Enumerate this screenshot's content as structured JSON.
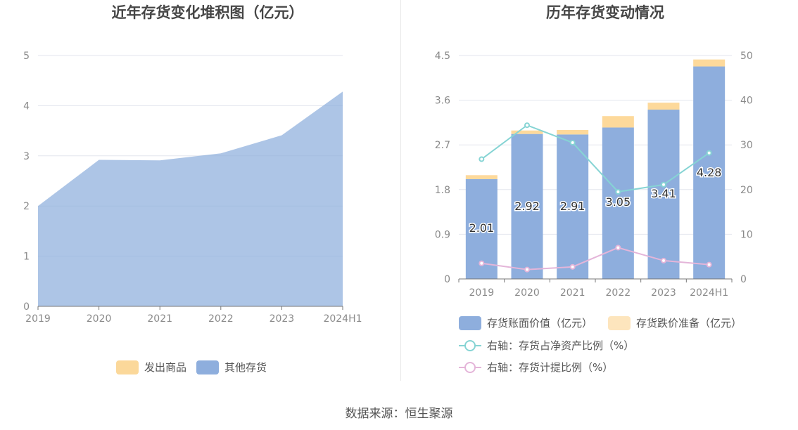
{
  "titles": {
    "left": "近年存货变化堆积图（亿元）",
    "right": "历年存货变动情况"
  },
  "source": "数据来源：恒生聚源",
  "chart_data": [
    {
      "type": "area",
      "title": "近年存货变化堆积图（亿元）",
      "categories": [
        "2019",
        "2020",
        "2021",
        "2022",
        "2023",
        "2024H1"
      ],
      "ylim": [
        0,
        5
      ],
      "yticks": [
        "0",
        "1",
        "2",
        "3",
        "4",
        "5"
      ],
      "grid": true,
      "stacked": true,
      "legend_position": "bottom",
      "series": [
        {
          "name": "发出商品",
          "values": [
            0,
            0,
            0,
            0,
            0,
            0
          ],
          "color": "#fbd89a"
        },
        {
          "name": "其他存货",
          "values": [
            2.0,
            2.92,
            2.91,
            3.05,
            3.41,
            4.28
          ],
          "color": "#8eaedd"
        }
      ]
    },
    {
      "type": "bar",
      "title": "历年存货变动情况",
      "categories": [
        "2019",
        "2020",
        "2021",
        "2022",
        "2023",
        "2024H1"
      ],
      "ylim": [
        0,
        4.5
      ],
      "yticks": [
        "0",
        "0.9",
        "1.8",
        "2.7",
        "3.6",
        "4.5"
      ],
      "y2lim": [
        0,
        50
      ],
      "y2ticks": [
        "0",
        "10",
        "20",
        "30",
        "40",
        "50"
      ],
      "grid": true,
      "stacked": true,
      "legend_position": "bottom",
      "series": [
        {
          "name": "存货账面价值（亿元）",
          "kind": "bar",
          "axis": "left",
          "values": [
            2.01,
            2.92,
            2.91,
            3.05,
            3.41,
            4.28
          ],
          "labels": [
            "2.01",
            "2.92",
            "2.91",
            "3.05",
            "3.41",
            "4.28"
          ],
          "color": "#8eaedd"
        },
        {
          "name": "存货跌价准备（亿元）",
          "kind": "bar",
          "axis": "left",
          "values": [
            0.08,
            0.07,
            0.09,
            0.23,
            0.14,
            0.14
          ],
          "color": "#fde5bd"
        },
        {
          "name": "右轴：存货占净资产比例（%）",
          "kind": "line",
          "axis": "right",
          "values": [
            26.8,
            34.4,
            30.5,
            19.5,
            21.1,
            28.2
          ],
          "color": "#86d4d4"
        },
        {
          "name": "右轴：存货计提比例（%）",
          "kind": "line",
          "axis": "right",
          "values": [
            3.5,
            2.1,
            2.7,
            7.0,
            4.1,
            3.2
          ],
          "color": "#e4b5d9"
        }
      ]
    }
  ]
}
